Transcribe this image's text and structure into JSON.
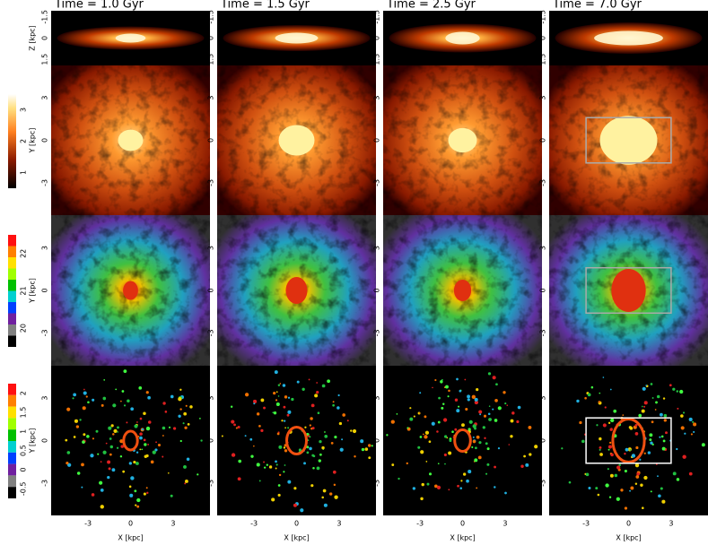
{
  "columns": {
    "titles": [
      "Time = 1.0 Gyr",
      "Time = 1.5 Gyr",
      "Time = 2.5 Gyr",
      "Time = 7.0 Gyr"
    ]
  },
  "axes": {
    "z_label": "Z [kpc]",
    "z_ticks": [
      "1.5",
      "0",
      "-1.5"
    ],
    "y_label": "Y [kpc]",
    "y_ticks": [
      "3",
      "0",
      "-3"
    ],
    "x_label": "X [kpc]",
    "x_ticks": [
      "-3",
      "0",
      "3"
    ]
  },
  "colorbars": [
    {
      "ticks": [
        "1",
        "2",
        "3"
      ]
    },
    {
      "ticks": [
        "20",
        "21",
        "22"
      ]
    },
    {
      "ticks": [
        "-0.5",
        "0",
        "0.5",
        "1",
        "1.5",
        "2"
      ]
    }
  ]
}
